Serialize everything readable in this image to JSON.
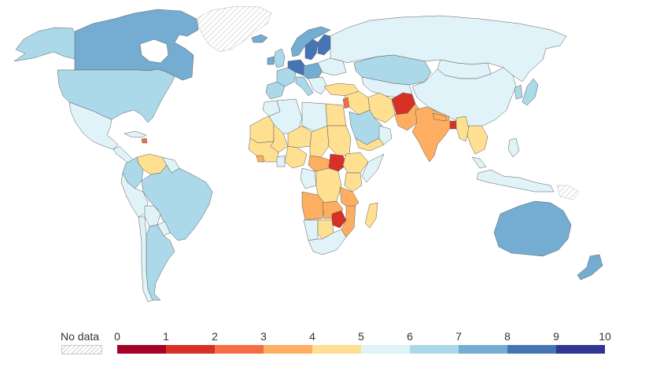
{
  "legend": {
    "no_data_label": "No data",
    "ticks": [
      "0",
      "1",
      "2",
      "3",
      "4",
      "5",
      "6",
      "7",
      "8",
      "9",
      "10"
    ],
    "bins": [
      {
        "from": 0,
        "to": 1,
        "color": "#a50026"
      },
      {
        "from": 1,
        "to": 2,
        "color": "#d73027"
      },
      {
        "from": 2,
        "to": 3,
        "color": "#f46d43"
      },
      {
        "from": 3,
        "to": 4,
        "color": "#fdae61"
      },
      {
        "from": 4,
        "to": 5,
        "color": "#fee090"
      },
      {
        "from": 5,
        "to": 6,
        "color": "#e0f3f8"
      },
      {
        "from": 6,
        "to": 7,
        "color": "#abd9e9"
      },
      {
        "from": 7,
        "to": 8,
        "color": "#74add1"
      },
      {
        "from": 8,
        "to": 9,
        "color": "#4575b4"
      },
      {
        "from": 9,
        "to": 10,
        "color": "#313695"
      }
    ]
  },
  "colors": {
    "no_data_hatch": "#d0d0d0",
    "border": "#5b5b5b",
    "ocean": "#ffffff"
  }
}
